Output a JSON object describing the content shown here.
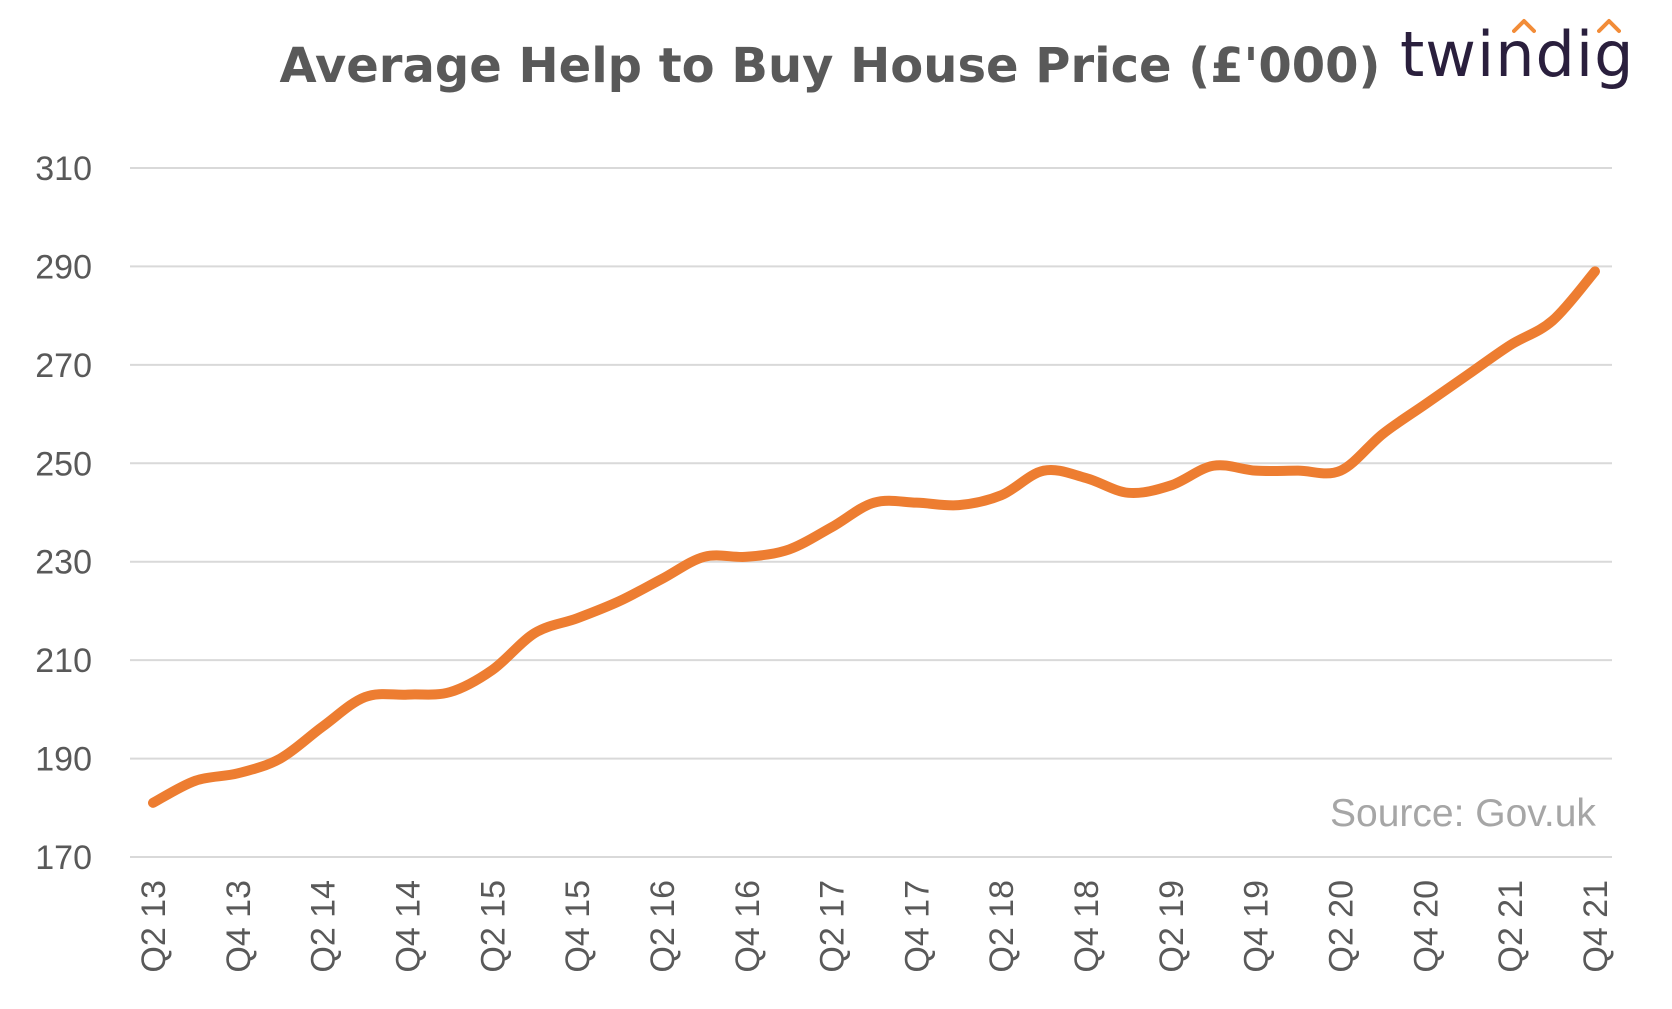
{
  "brand": {
    "name": "twindig",
    "accent_color": "#f28c38"
  },
  "source_note": "Source: Gov.uk",
  "chart_data": {
    "type": "line",
    "title": "Average Help to Buy House Price (£'000)",
    "xlabel": "",
    "ylabel": "",
    "ylim": [
      170,
      310
    ],
    "y_ticks": [
      170,
      190,
      210,
      230,
      250,
      270,
      290,
      310
    ],
    "x_tick_labels": [
      "Q2 13",
      "Q4 13",
      "Q2 14",
      "Q4 14",
      "Q2 15",
      "Q4 15",
      "Q2 16",
      "Q4 16",
      "Q2 17",
      "Q4 17",
      "Q2 18",
      "Q4 18",
      "Q2 19",
      "Q4 19",
      "Q2 20",
      "Q4 20",
      "Q2 21",
      "Q4 21"
    ],
    "grid": true,
    "line_color": "#ed7d31",
    "series": [
      {
        "x": [
          "Q2 13",
          "Q3 13",
          "Q4 13",
          "Q1 14",
          "Q2 14",
          "Q3 14",
          "Q4 14",
          "Q1 15",
          "Q2 15",
          "Q3 15",
          "Q4 15",
          "Q1 16",
          "Q2 16",
          "Q3 16",
          "Q4 16",
          "Q1 17",
          "Q2 17",
          "Q3 17",
          "Q4 17",
          "Q1 18",
          "Q2 18",
          "Q3 18",
          "Q4 18",
          "Q1 19",
          "Q2 19",
          "Q3 19",
          "Q4 19",
          "Q1 20",
          "Q2 20",
          "Q3 20",
          "Q4 20",
          "Q1 21",
          "Q2 21",
          "Q3 21",
          "Q4 21"
        ],
        "values": [
          181,
          185.5,
          187,
          190,
          196.5,
          202.5,
          203,
          203.5,
          208,
          215.5,
          218.5,
          222,
          226.5,
          231,
          231,
          232.5,
          237,
          242,
          242,
          241.5,
          243.5,
          248.5,
          247,
          244,
          245.5,
          249.5,
          248.5,
          248.5,
          248.5,
          256,
          262,
          268,
          274,
          279,
          289
        ]
      }
    ]
  }
}
